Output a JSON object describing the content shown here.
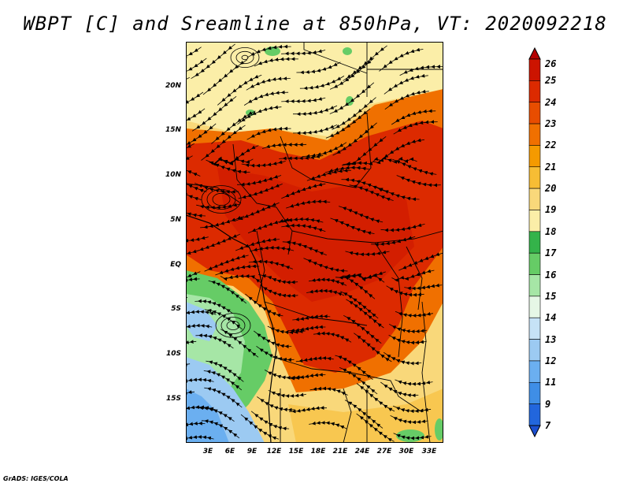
{
  "title": "WBPT [C] and Sreamline at 850hPa, VT: 2020092218",
  "footer": "GrADS: IGES/COLA",
  "map": {
    "lat_labels": [
      "20N",
      "15N",
      "10N",
      "5N",
      "EQ",
      "5S",
      "10S",
      "15S"
    ],
    "lon_labels": [
      "3E",
      "6E",
      "9E",
      "12E",
      "15E",
      "18E",
      "21E",
      "24E",
      "27E",
      "30E",
      "33E"
    ],
    "extent": {
      "lon_min": 0.5,
      "lon_max": 35.5,
      "lat_min": -20.5,
      "lat_max": 24.5
    },
    "variable": "WBPT",
    "units": "C",
    "level": "850hPa",
    "valid_time": "2020092218"
  },
  "colorbar": {
    "levels": [
      "26",
      "25",
      "24",
      "23",
      "22",
      "21",
      "20",
      "19",
      "18",
      "17",
      "16",
      "15",
      "14",
      "13",
      "12",
      "11",
      "9",
      "7"
    ],
    "colors": [
      "#b50000",
      "#cc1400",
      "#dc2a00",
      "#e84d00",
      "#f07000",
      "#f59a00",
      "#f7bd34",
      "#f9d87a",
      "#fbeea8",
      "#34b34a",
      "#66cc66",
      "#a6e6a6",
      "#e6f7e6",
      "#c6e2f6",
      "#9ccaf2",
      "#6baff0",
      "#3f8ee6",
      "#2266dd",
      "#1b4fd0"
    ]
  }
}
